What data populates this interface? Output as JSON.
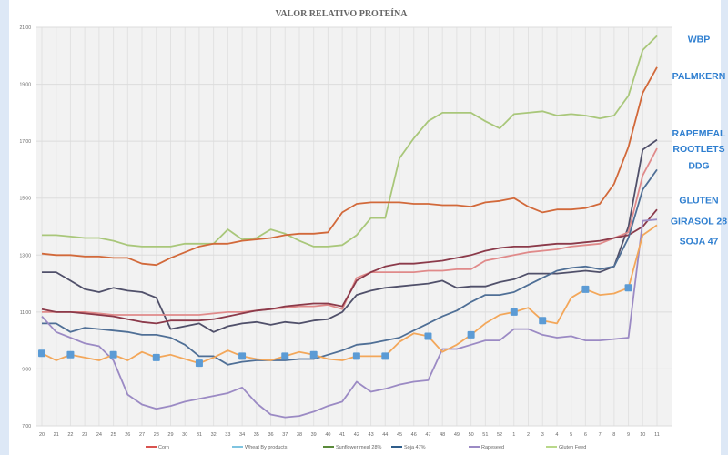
{
  "chart_data": {
    "type": "line",
    "title": "VALOR RELATIVO PROTEÍNA",
    "xlabel": "",
    "ylabel": "",
    "ylim": [
      7,
      21
    ],
    "yticks": [
      "7,00",
      "9,00",
      "11,00",
      "13,00",
      "15,00",
      "17,00",
      "19,00",
      "21,00"
    ],
    "ytick_values": [
      7,
      9,
      11,
      13,
      15,
      17,
      19,
      21
    ],
    "grid": true,
    "legend_position": "bottom",
    "categories": [
      "20",
      "21",
      "22",
      "23",
      "24",
      "25",
      "26",
      "27",
      "28",
      "29",
      "30",
      "31",
      "32",
      "33",
      "34",
      "35",
      "36",
      "37",
      "38",
      "39",
      "40",
      "41",
      "42",
      "43",
      "44",
      "45",
      "46",
      "47",
      "48",
      "49",
      "50",
      "51",
      "52",
      "1",
      "2",
      "3",
      "4",
      "5",
      "6",
      "7",
      "8",
      "9",
      "10",
      "11"
    ],
    "series": [
      {
        "name": "Gluten Feed",
        "color": "#a9c77a",
        "values": [
          13.7,
          13.7,
          13.65,
          13.6,
          13.6,
          13.5,
          13.35,
          13.3,
          13.3,
          13.3,
          13.4,
          13.4,
          13.4,
          13.9,
          13.55,
          13.6,
          13.9,
          13.75,
          13.5,
          13.3,
          13.3,
          13.35,
          13.7,
          14.3,
          14.3,
          16.4,
          17.1,
          17.7,
          18.0,
          18.0,
          18.0,
          17.7,
          17.45,
          17.95,
          18.0,
          18.05,
          17.9,
          17.95,
          17.9,
          17.8,
          17.9,
          18.6,
          20.2,
          20.7
        ]
      },
      {
        "name": "Corn",
        "color": "#d2693a",
        "values": [
          13.05,
          13.0,
          13.0,
          12.95,
          12.95,
          12.9,
          12.9,
          12.7,
          12.65,
          12.9,
          13.1,
          13.3,
          13.4,
          13.4,
          13.5,
          13.55,
          13.6,
          13.7,
          13.75,
          13.75,
          13.8,
          14.5,
          14.8,
          14.85,
          14.85,
          14.85,
          14.8,
          14.8,
          14.75,
          14.75,
          14.7,
          14.85,
          14.9,
          15.0,
          14.7,
          14.5,
          14.6,
          14.6,
          14.65,
          14.8,
          15.5,
          16.8,
          18.7,
          19.6
        ]
      },
      {
        "name": "Rapemeal",
        "color": "#50506a",
        "values": [
          12.4,
          12.4,
          12.1,
          11.8,
          11.7,
          11.85,
          11.75,
          11.7,
          11.5,
          10.4,
          10.5,
          10.6,
          10.3,
          10.5,
          10.6,
          10.65,
          10.55,
          10.65,
          10.6,
          10.7,
          10.75,
          11.0,
          11.6,
          11.75,
          11.85,
          11.9,
          11.95,
          12.0,
          12.1,
          11.85,
          11.9,
          11.9,
          12.05,
          12.15,
          12.35,
          12.35,
          12.35,
          12.4,
          12.45,
          12.4,
          12.6,
          14.0,
          16.7,
          17.05
        ]
      },
      {
        "name": "Rootlets",
        "color": "#e08a8a",
        "values": [
          11.0,
          11.0,
          11.0,
          11.0,
          10.95,
          10.9,
          10.9,
          10.9,
          10.9,
          10.9,
          10.9,
          10.9,
          10.95,
          11.0,
          11.0,
          11.05,
          11.1,
          11.15,
          11.2,
          11.2,
          11.25,
          11.1,
          12.2,
          12.4,
          12.4,
          12.4,
          12.4,
          12.45,
          12.45,
          12.5,
          12.5,
          12.8,
          12.9,
          13.0,
          13.1,
          13.15,
          13.2,
          13.3,
          13.35,
          13.4,
          13.6,
          13.8,
          15.8,
          16.75
        ]
      },
      {
        "name": "Gluten",
        "color": "#8b3a4a",
        "values": [
          11.1,
          11.0,
          11.0,
          10.95,
          10.9,
          10.85,
          10.75,
          10.65,
          10.6,
          10.7,
          10.7,
          10.7,
          10.75,
          10.85,
          10.95,
          11.05,
          11.1,
          11.2,
          11.25,
          11.3,
          11.3,
          11.2,
          12.1,
          12.4,
          12.6,
          12.7,
          12.7,
          12.75,
          12.8,
          12.9,
          13.0,
          13.15,
          13.25,
          13.3,
          13.3,
          13.35,
          13.4,
          13.4,
          13.45,
          13.5,
          13.6,
          13.7,
          14.0,
          14.6
        ]
      },
      {
        "name": "DDG",
        "color": "#4f6f96",
        "values": [
          10.6,
          10.6,
          10.3,
          10.45,
          10.4,
          10.35,
          10.3,
          10.2,
          10.2,
          10.1,
          9.85,
          9.45,
          9.45,
          9.15,
          9.25,
          9.3,
          9.3,
          9.3,
          9.35,
          9.35,
          9.5,
          9.65,
          9.85,
          9.9,
          10.0,
          10.1,
          10.35,
          10.6,
          10.85,
          11.05,
          11.35,
          11.6,
          11.6,
          11.7,
          11.95,
          12.2,
          12.45,
          12.55,
          12.6,
          12.5,
          12.6,
          13.6,
          15.3,
          16.0
        ]
      },
      {
        "name": "Rapeseed",
        "color": "#9b8ac4",
        "values": [
          10.85,
          10.3,
          10.1,
          9.9,
          9.8,
          9.3,
          8.1,
          7.75,
          7.6,
          7.7,
          7.85,
          7.95,
          8.05,
          8.15,
          8.35,
          7.8,
          7.4,
          7.3,
          7.35,
          7.5,
          7.7,
          7.85,
          8.55,
          8.2,
          8.3,
          8.45,
          8.55,
          8.6,
          9.7,
          9.7,
          9.85,
          10.0,
          10.0,
          10.4,
          10.4,
          10.2,
          10.1,
          10.15,
          10.0,
          10.0,
          10.05,
          10.1,
          14.2,
          14.25
        ]
      },
      {
        "name": "Soja 47%",
        "color": "#f3a75a",
        "marker_indices": [
          0,
          2,
          5,
          8,
          11,
          14,
          17,
          19,
          22,
          24,
          27,
          30,
          33,
          35,
          38,
          41
        ],
        "marker_color": "#5b9bd5",
        "values": [
          9.55,
          9.3,
          9.5,
          9.4,
          9.3,
          9.5,
          9.3,
          9.6,
          9.4,
          9.5,
          9.35,
          9.2,
          9.4,
          9.65,
          9.45,
          9.35,
          9.3,
          9.45,
          9.6,
          9.5,
          9.35,
          9.3,
          9.45,
          9.45,
          9.45,
          9.95,
          10.25,
          10.15,
          9.6,
          9.85,
          10.2,
          10.6,
          10.9,
          11.0,
          11.15,
          10.7,
          10.6,
          11.5,
          11.8,
          11.6,
          11.65,
          11.85,
          13.7,
          14.05
        ]
      }
    ],
    "legend": [
      {
        "label": "Corn",
        "color": "#d9534f"
      },
      {
        "label": "Wheat By products",
        "color": "#7fc4e0"
      },
      {
        "label": "Sunflower meal 28%",
        "color": "#5a8a3a"
      },
      {
        "label": "Soja 47%",
        "color": "#2f5d8a"
      },
      {
        "label": "Rapeseed",
        "color": "#9b8ac4"
      },
      {
        "label": "Gluten Feed",
        "color": "#b9d88a"
      }
    ],
    "annotations": [
      {
        "text": "WBP",
        "value": 20.6
      },
      {
        "text": "PALMKERN",
        "value": 19.3
      },
      {
        "text": "RAPEMEAL",
        "value": 17.3
      },
      {
        "text": "ROOTLETS",
        "value": 16.75
      },
      {
        "text": "DDG",
        "value": 16.15
      },
      {
        "text": "GLUTEN",
        "value": 14.95
      },
      {
        "text": "GIRASOL 28",
        "value": 14.2
      },
      {
        "text": "SOJA 47",
        "value": 13.5
      }
    ],
    "annotation_color": "#2f7fd0"
  }
}
